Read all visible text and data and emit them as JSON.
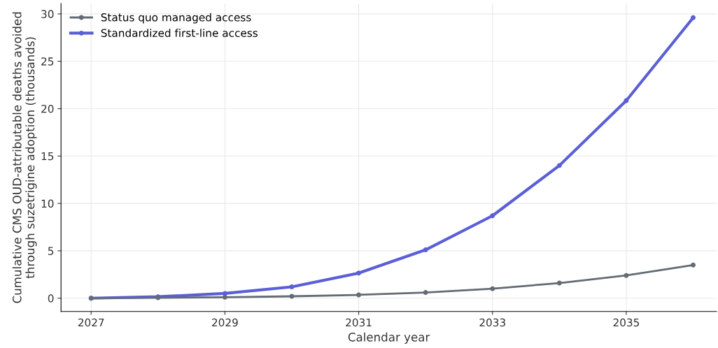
{
  "chart_data": {
    "type": "line",
    "xlabel": "Calendar year",
    "ylabel": "Cumulative CMS OUD-attributable deaths avoided\nthrough suzetrigine adoption (thousands)",
    "x": [
      2027,
      2028,
      2029,
      2030,
      2031,
      2032,
      2033,
      2034,
      2035,
      2036
    ],
    "series": [
      {
        "name": "Status quo managed access",
        "color": "#636b75",
        "values": [
          0,
          0.05,
          0.1,
          0.2,
          0.35,
          0.6,
          1.0,
          1.6,
          2.4,
          3.5
        ]
      },
      {
        "name": "Standardized first-line access",
        "color": "#5b5fd6",
        "values": [
          0,
          0.15,
          0.5,
          1.2,
          2.65,
          5.1,
          8.7,
          14.0,
          20.85,
          29.6
        ]
      }
    ],
    "xlim": [
      2026.55,
      2036.35
    ],
    "xticks": [
      2027,
      2029,
      2031,
      2033,
      2035
    ],
    "ylim": [
      -1.4,
      31.1
    ],
    "yticks": [
      0,
      5,
      10,
      15,
      20,
      25,
      30
    ],
    "grid": true,
    "legend": "top left",
    "marker": "circle",
    "line_style": "solid"
  }
}
